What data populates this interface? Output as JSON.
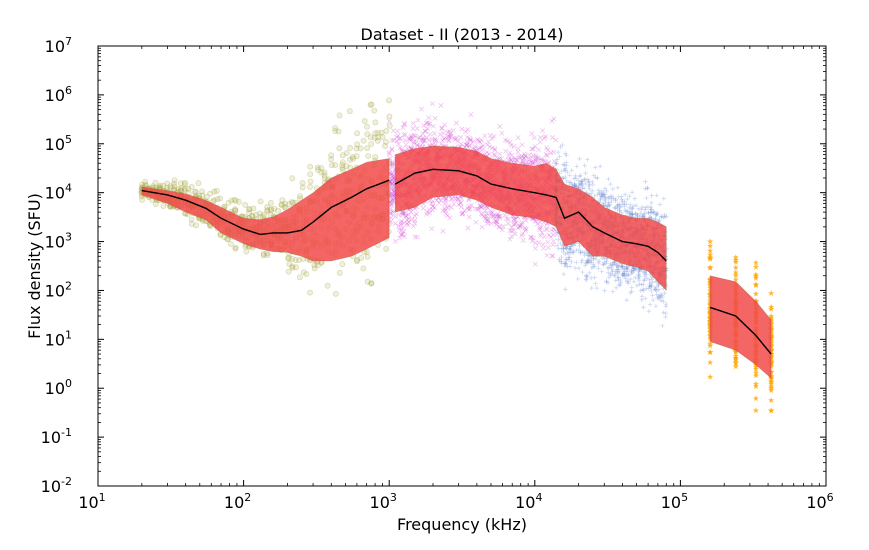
{
  "chart_data": {
    "type": "scatter",
    "title": "Dataset - II (2013 - 2014)",
    "xlabel": "Frequency (kHz)",
    "ylabel": "Flux density (SFU)",
    "xscale": "log",
    "yscale": "log",
    "xlim": [
      10,
      1000000
    ],
    "ylim": [
      0.01,
      10000000
    ],
    "grid": false,
    "x_ticks": [
      {
        "value": 10,
        "base": "10",
        "exp": "1"
      },
      {
        "value": 100,
        "base": "10",
        "exp": "2"
      },
      {
        "value": 1000,
        "base": "10",
        "exp": "3"
      },
      {
        "value": 10000,
        "base": "10",
        "exp": "4"
      },
      {
        "value": 100000,
        "base": "10",
        "exp": "5"
      },
      {
        "value": 1000000,
        "base": "10",
        "exp": "6"
      }
    ],
    "y_ticks": [
      {
        "value": 0.01,
        "base": "10",
        "exp": "-2"
      },
      {
        "value": 0.1,
        "base": "10",
        "exp": "-1"
      },
      {
        "value": 1,
        "base": "10",
        "exp": "0"
      },
      {
        "value": 10,
        "base": "10",
        "exp": "1"
      },
      {
        "value": 100,
        "base": "10",
        "exp": "2"
      },
      {
        "value": 1000,
        "base": "10",
        "exp": "3"
      },
      {
        "value": 10000,
        "base": "10",
        "exp": "4"
      },
      {
        "value": 100000,
        "base": "10",
        "exp": "5"
      },
      {
        "value": 1000000,
        "base": "10",
        "exp": "6"
      },
      {
        "value": 10000000,
        "base": "10",
        "exp": "7"
      }
    ],
    "colors": {
      "band_fill": "#f24a4a",
      "median_line": "#000000",
      "olive": "#a8a84a",
      "magenta": "#cc33cc",
      "blue": "#5577cc",
      "orange": "#ffa500"
    },
    "series": [
      {
        "marker": "circle",
        "color": "#a8a84a",
        "x_range": [
          20,
          1000
        ],
        "median": [
          [
            20,
            11000
          ],
          [
            30,
            9000
          ],
          [
            40,
            7000
          ],
          [
            55,
            4800
          ],
          [
            70,
            3000
          ],
          [
            100,
            1800
          ],
          [
            130,
            1400
          ],
          [
            160,
            1500
          ],
          [
            200,
            1500
          ],
          [
            250,
            1700
          ],
          [
            300,
            2500
          ],
          [
            400,
            5000
          ],
          [
            550,
            8000
          ],
          [
            700,
            12000
          ],
          [
            1000,
            18000
          ]
        ],
        "lower": [
          [
            20,
            9000
          ],
          [
            30,
            6000
          ],
          [
            40,
            4000
          ],
          [
            55,
            2800
          ],
          [
            70,
            1500
          ],
          [
            100,
            900
          ],
          [
            130,
            700
          ],
          [
            160,
            620
          ],
          [
            200,
            600
          ],
          [
            250,
            500
          ],
          [
            300,
            400
          ],
          [
            400,
            400
          ],
          [
            550,
            500
          ],
          [
            700,
            700
          ],
          [
            1000,
            1200
          ]
        ],
        "upper": [
          [
            20,
            13000
          ],
          [
            30,
            11000
          ],
          [
            40,
            9500
          ],
          [
            55,
            7000
          ],
          [
            70,
            5000
          ],
          [
            100,
            3000
          ],
          [
            130,
            2800
          ],
          [
            160,
            3200
          ],
          [
            200,
            4500
          ],
          [
            250,
            7000
          ],
          [
            300,
            10000
          ],
          [
            400,
            20000
          ],
          [
            550,
            30000
          ],
          [
            700,
            42000
          ],
          [
            1000,
            50000
          ]
        ]
      },
      {
        "marker": "x",
        "color": "#cc33cc",
        "x_range": [
          1000,
          14000
        ],
        "median": [
          [
            1100,
            15000
          ],
          [
            1500,
            25000
          ],
          [
            2000,
            30000
          ],
          [
            3000,
            28000
          ],
          [
            4000,
            22000
          ],
          [
            5000,
            15000
          ],
          [
            7000,
            12000
          ],
          [
            10000,
            10000
          ],
          [
            12000,
            9000
          ],
          [
            14000,
            8000
          ]
        ],
        "lower": [
          [
            1100,
            4000
          ],
          [
            1500,
            5000
          ],
          [
            2000,
            8000
          ],
          [
            3000,
            9000
          ],
          [
            4000,
            7000
          ],
          [
            5000,
            5000
          ],
          [
            7000,
            3500
          ],
          [
            10000,
            3000
          ],
          [
            12000,
            2500
          ],
          [
            14000,
            2000
          ]
        ],
        "upper": [
          [
            1100,
            60000
          ],
          [
            1500,
            80000
          ],
          [
            2000,
            90000
          ],
          [
            3000,
            85000
          ],
          [
            4000,
            70000
          ],
          [
            5000,
            50000
          ],
          [
            7000,
            40000
          ],
          [
            10000,
            35000
          ],
          [
            12000,
            40000
          ],
          [
            14000,
            30000
          ]
        ]
      },
      {
        "marker": "plus",
        "color": "#5577cc",
        "x_range": [
          14000,
          80000
        ],
        "median": [
          [
            14000,
            8000
          ],
          [
            16000,
            3000
          ],
          [
            20000,
            4000
          ],
          [
            25000,
            2000
          ],
          [
            30000,
            1500
          ],
          [
            40000,
            1000
          ],
          [
            50000,
            900
          ],
          [
            60000,
            800
          ],
          [
            70000,
            600
          ],
          [
            80000,
            400
          ]
        ],
        "lower": [
          [
            14000,
            2000
          ],
          [
            16000,
            800
          ],
          [
            20000,
            1000
          ],
          [
            25000,
            500
          ],
          [
            30000,
            500
          ],
          [
            40000,
            350
          ],
          [
            50000,
            300
          ],
          [
            60000,
            250
          ],
          [
            70000,
            150
          ],
          [
            80000,
            100
          ]
        ],
        "upper": [
          [
            14000,
            30000
          ],
          [
            16000,
            15000
          ],
          [
            20000,
            12000
          ],
          [
            25000,
            8000
          ],
          [
            30000,
            5000
          ],
          [
            40000,
            3500
          ],
          [
            50000,
            3000
          ],
          [
            60000,
            3000
          ],
          [
            70000,
            2500
          ],
          [
            80000,
            2000
          ]
        ]
      },
      {
        "marker": "star",
        "color": "#ffa500",
        "x": [
          160000,
          240000,
          330000,
          420000
        ],
        "median": [
          [
            160000,
            45
          ],
          [
            240000,
            30
          ],
          [
            330000,
            12
          ],
          [
            420000,
            5
          ]
        ],
        "lower": [
          [
            160000,
            9
          ],
          [
            240000,
            6
          ],
          [
            330000,
            3
          ],
          [
            420000,
            1.6
          ]
        ],
        "upper": [
          [
            160000,
            200
          ],
          [
            240000,
            150
          ],
          [
            330000,
            60
          ],
          [
            420000,
            25
          ]
        ]
      }
    ]
  }
}
